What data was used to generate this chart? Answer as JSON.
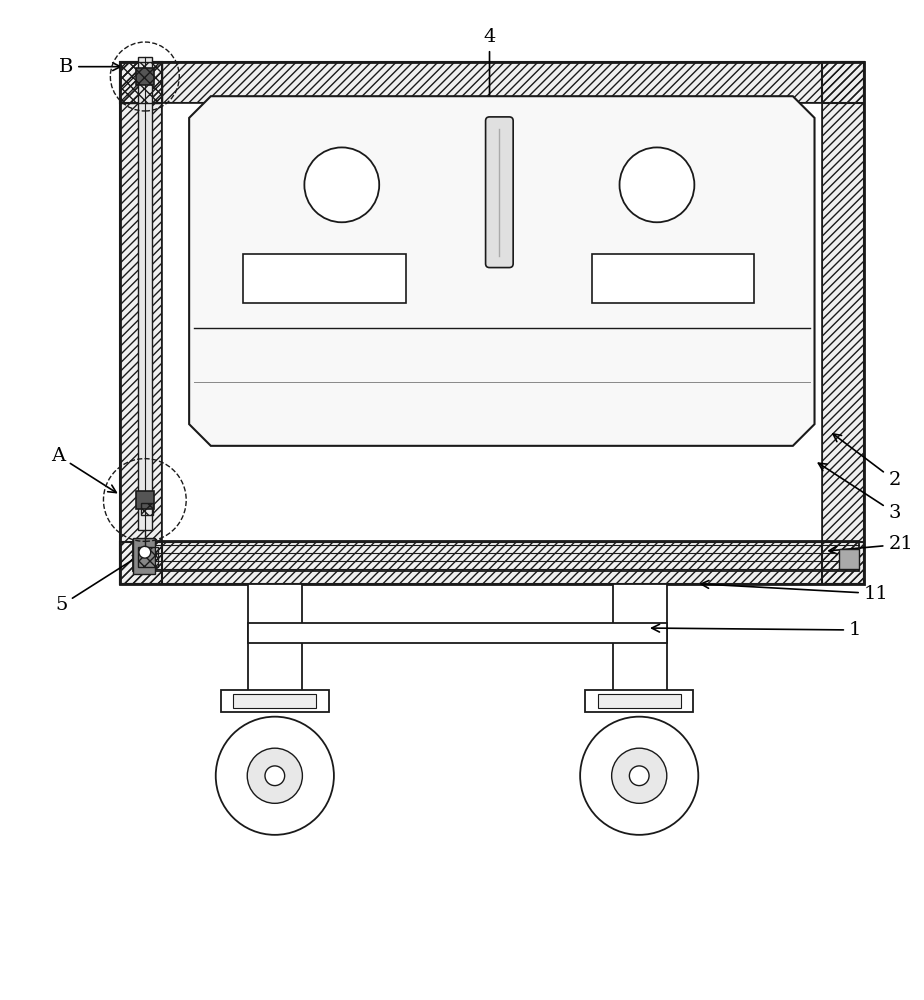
{
  "bg_color": "#ffffff",
  "line_color": "#1a1a1a",
  "figure_width": 9.24,
  "figure_height": 10.0,
  "dpi": 100
}
